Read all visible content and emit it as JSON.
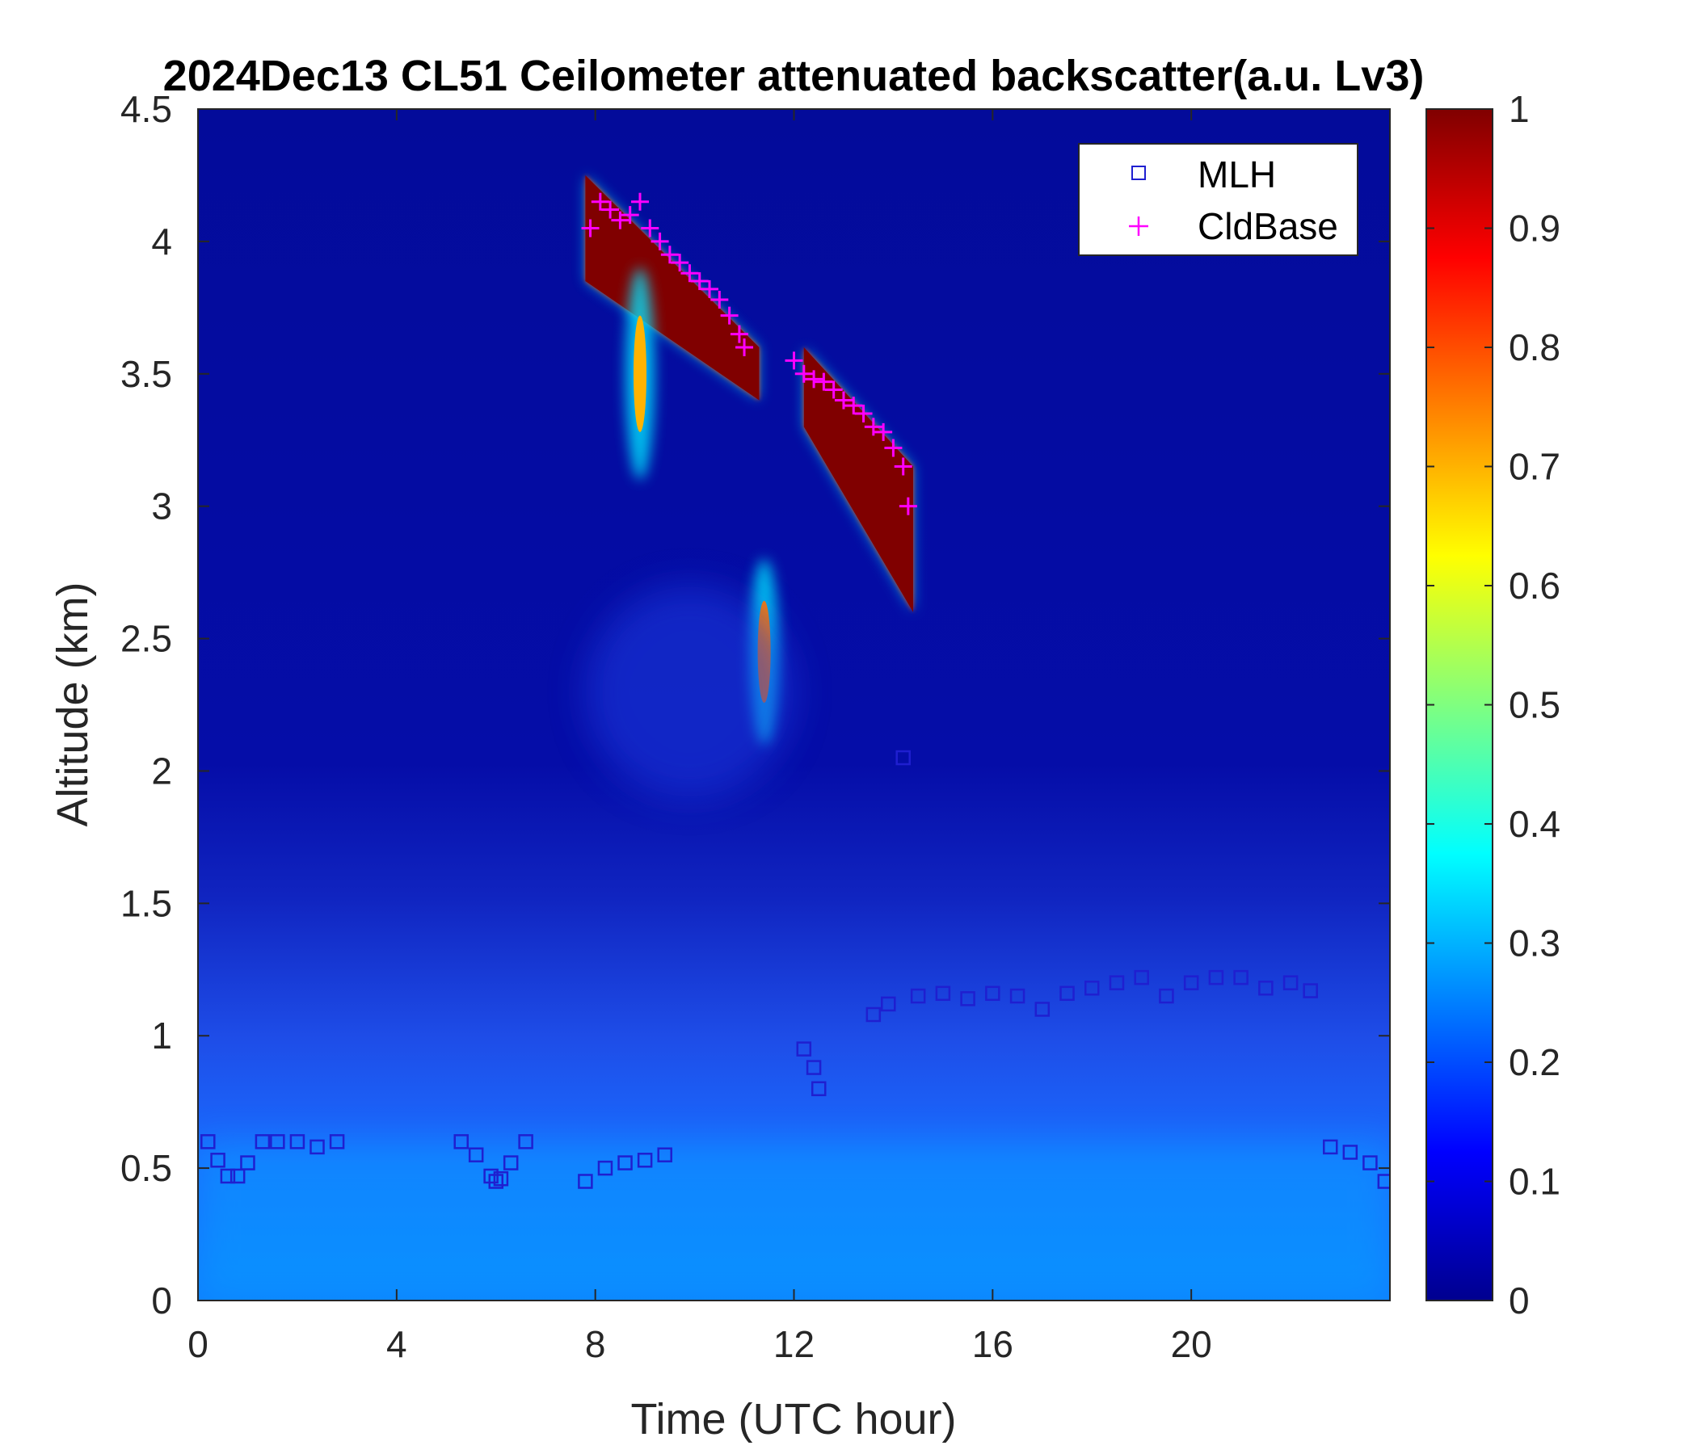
{
  "chart_data": {
    "type": "heatmap",
    "title": "2024Dec13 CL51 Ceilometer attenuated backscatter(a.u. Lv3)",
    "xlabel": "Time (UTC hour)",
    "ylabel": "Altitude (km)",
    "xlim": [
      0,
      24
    ],
    "ylim": [
      0,
      4.5
    ],
    "xticks": [
      0,
      4,
      8,
      12,
      16,
      20
    ],
    "xtick_labels": [
      "0",
      "4",
      "8",
      "12",
      "16",
      "20"
    ],
    "yticks": [
      0,
      0.5,
      1,
      1.5,
      2,
      2.5,
      3,
      3.5,
      4,
      4.5
    ],
    "ytick_labels": [
      "0",
      "0.5",
      "1",
      "1.5",
      "2",
      "2.5",
      "3",
      "3.5",
      "4",
      "4.5"
    ],
    "colorbar": {
      "colormap": "jet",
      "range": [
        0,
        1
      ],
      "ticks": [
        0,
        0.1,
        0.2,
        0.3,
        0.4,
        0.5,
        0.6,
        0.7,
        0.8,
        0.9,
        1
      ],
      "tick_labels": [
        "0",
        "0.1",
        "0.2",
        "0.3",
        "0.4",
        "0.5",
        "0.6",
        "0.7",
        "0.8",
        "0.9",
        "1"
      ]
    },
    "legend": {
      "placement": "top-right",
      "entries": [
        {
          "label": "MLH",
          "marker": "square",
          "color": "#1f1fd0"
        },
        {
          "label": "CldBase",
          "marker": "plus",
          "color": "#ff00ff"
        }
      ]
    },
    "series": [
      {
        "name": "MLH",
        "x": [
          0.2,
          0.4,
          0.6,
          0.8,
          1.0,
          1.3,
          1.6,
          2.0,
          2.4,
          2.8,
          5.3,
          5.6,
          5.9,
          6.0,
          6.1,
          6.3,
          6.6,
          7.8,
          8.2,
          8.6,
          9.0,
          9.4,
          12.2,
          12.4,
          12.5,
          13.6,
          13.9,
          14.2,
          14.5,
          15.0,
          15.5,
          16.0,
          16.5,
          17.0,
          17.5,
          18.0,
          18.5,
          19.0,
          19.5,
          20.0,
          20.5,
          21.0,
          21.5,
          22.0,
          22.4,
          22.8,
          23.2,
          23.6,
          23.9
        ],
        "y": [
          0.6,
          0.53,
          0.47,
          0.47,
          0.52,
          0.6,
          0.6,
          0.6,
          0.58,
          0.6,
          0.6,
          0.55,
          0.47,
          0.45,
          0.46,
          0.52,
          0.6,
          0.45,
          0.5,
          0.52,
          0.53,
          0.55,
          0.95,
          0.88,
          0.8,
          1.08,
          1.12,
          2.05,
          1.15,
          1.16,
          1.14,
          1.16,
          1.15,
          1.1,
          1.16,
          1.18,
          1.2,
          1.22,
          1.15,
          1.2,
          1.22,
          1.22,
          1.18,
          1.2,
          1.17,
          0.58,
          0.56,
          0.52,
          0.45
        ]
      },
      {
        "name": "CldBase",
        "x": [
          7.9,
          8.1,
          8.3,
          8.5,
          8.7,
          8.9,
          9.1,
          9.3,
          9.5,
          9.7,
          9.9,
          10.1,
          10.3,
          10.5,
          10.7,
          10.9,
          11.0,
          12.0,
          12.2,
          12.4,
          12.6,
          12.8,
          13.0,
          13.2,
          13.4,
          13.6,
          13.8,
          14.0,
          14.2,
          14.3
        ],
        "y": [
          4.05,
          4.15,
          4.12,
          4.08,
          4.1,
          4.15,
          4.05,
          4.0,
          3.95,
          3.92,
          3.88,
          3.85,
          3.82,
          3.78,
          3.72,
          3.65,
          3.6,
          3.55,
          3.5,
          3.48,
          3.47,
          3.44,
          3.4,
          3.38,
          3.35,
          3.3,
          3.28,
          3.22,
          3.15,
          3.0
        ]
      }
    ],
    "features": [
      {
        "kind": "background_aerosol",
        "x_range": [
          0,
          24
        ],
        "y_range": [
          0,
          1.5
        ],
        "value": 0.22
      },
      {
        "kind": "cloud",
        "x_range": [
          7.8,
          11.3
        ],
        "y_top": [
          4.25,
          3.6
        ],
        "y_bottom": [
          3.85,
          3.4
        ],
        "value": 1.0
      },
      {
        "kind": "cloud",
        "x_range": [
          12.2,
          14.4
        ],
        "y_top": [
          3.6,
          3.15
        ],
        "y_bottom": [
          3.3,
          2.6
        ],
        "value": 1.0
      },
      {
        "kind": "precip_streak",
        "x": 8.9,
        "y_range": [
          3.1,
          3.9
        ],
        "value": 0.7
      },
      {
        "kind": "isolated_cloud",
        "x": 11.4,
        "y_range": [
          2.1,
          2.8
        ],
        "value": 0.75
      },
      {
        "kind": "residual_layer",
        "x_range": [
          7.8,
          12.0
        ],
        "y_range": [
          1.9,
          2.7
        ],
        "value": 0.2
      }
    ]
  }
}
